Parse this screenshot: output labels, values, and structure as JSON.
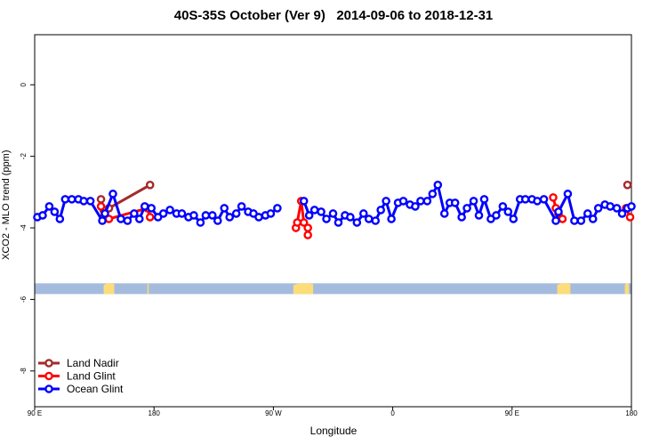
{
  "chart_data": {
    "type": "line",
    "title": "40S-35S October (Ver 9)   2014-09-06 to 2018-12-31",
    "xlabel": "Longitude",
    "ylabel": "XCO2 - MLO trend (ppm)",
    "x_ticks": [
      {
        "lon_shifted": 90,
        "label": "90 E"
      },
      {
        "lon_shifted": 180,
        "label": "180"
      },
      {
        "lon_shifted": 270,
        "label": "90 W"
      },
      {
        "lon_shifted": 360,
        "label": "0"
      },
      {
        "lon_shifted": 450,
        "label": "90 E"
      },
      {
        "lon_shifted": 540,
        "label": "180"
      }
    ],
    "y_ticks": [
      0,
      -2,
      -4,
      -6,
      -8
    ],
    "xlim": [
      90,
      540
    ],
    "ylim": [
      -9,
      1.4
    ],
    "grid": false,
    "legend_position": "bottom-left",
    "land_band": {
      "y_top": -5.55,
      "y_bottom": -5.85,
      "band_color": "#a4bbdd",
      "land_color": "#fddc7a",
      "land_x_ranges": [
        [
          142,
          150
        ],
        [
          175,
          176
        ],
        [
          285,
          300
        ],
        [
          484,
          494
        ],
        [
          535,
          538
        ]
      ]
    },
    "series": [
      {
        "name": "Land Nadir",
        "color": "#a52a2a",
        "segments": [
          [
            [
              140,
              -3.2
            ],
            [
              142,
              -3.5
            ],
            [
              146,
              -3.45
            ],
            [
              177,
              -2.8
            ]
          ],
          [
            [
              537,
              -2.8
            ]
          ]
        ]
      },
      {
        "name": "Land Glint",
        "color": "#ff0000",
        "segments": [
          [
            [
              140,
              -3.4
            ],
            [
              142,
              -3.7
            ],
            [
              146,
              -3.75
            ],
            [
              175,
              -3.45
            ],
            [
              177,
              -3.7
            ]
          ],
          [
            [
              287,
              -4.0
            ],
            [
              288,
              -3.85
            ],
            [
              291,
              -3.25
            ],
            [
              293,
              -3.85
            ],
            [
              296,
              -4.0
            ],
            [
              296,
              -4.2
            ]
          ],
          [
            [
              481,
              -3.15
            ],
            [
              483,
              -3.45
            ],
            [
              485,
              -3.6
            ],
            [
              488,
              -3.75
            ]
          ],
          [
            [
              536,
              -3.45
            ],
            [
              539,
              -3.7
            ]
          ]
        ]
      },
      {
        "name": "Ocean Glint",
        "color": "#0000ff",
        "segments": [
          [
            [
              92,
              -3.7
            ],
            [
              96,
              -3.65
            ],
            [
              101,
              -3.4
            ],
            [
              105,
              -3.55
            ],
            [
              109,
              -3.75
            ],
            [
              113,
              -3.2
            ],
            [
              118,
              -3.2
            ],
            [
              123,
              -3.2
            ],
            [
              127,
              -3.25
            ],
            [
              132,
              -3.25
            ],
            [
              141,
              -3.8
            ],
            [
              143,
              -3.6
            ],
            [
              149,
              -3.05
            ],
            [
              155,
              -3.75
            ],
            [
              160,
              -3.8
            ],
            [
              165,
              -3.6
            ],
            [
              169,
              -3.75
            ],
            [
              173,
              -3.4
            ],
            [
              178,
              -3.45
            ],
            [
              183,
              -3.7
            ],
            [
              187,
              -3.6
            ],
            [
              192,
              -3.5
            ],
            [
              197,
              -3.6
            ],
            [
              201,
              -3.6
            ],
            [
              206,
              -3.7
            ],
            [
              210,
              -3.65
            ],
            [
              215,
              -3.85
            ],
            [
              219,
              -3.65
            ],
            [
              224,
              -3.65
            ],
            [
              228,
              -3.8
            ],
            [
              233,
              -3.45
            ],
            [
              237,
              -3.7
            ],
            [
              242,
              -3.6
            ],
            [
              246,
              -3.4
            ],
            [
              251,
              -3.55
            ],
            [
              255,
              -3.6
            ],
            [
              259,
              -3.7
            ],
            [
              264,
              -3.65
            ],
            [
              268,
              -3.6
            ],
            [
              273,
              -3.45
            ]
          ],
          [
            [
              293,
              -3.25
            ],
            [
              297,
              -3.65
            ],
            [
              301,
              -3.5
            ],
            [
              306,
              -3.55
            ],
            [
              310,
              -3.75
            ],
            [
              315,
              -3.6
            ],
            [
              319,
              -3.85
            ],
            [
              324,
              -3.65
            ],
            [
              328,
              -3.7
            ],
            [
              333,
              -3.85
            ],
            [
              338,
              -3.6
            ],
            [
              342,
              -3.75
            ],
            [
              347,
              -3.8
            ],
            [
              351,
              -3.5
            ],
            [
              355,
              -3.25
            ],
            [
              359,
              -3.75
            ],
            [
              364,
              -3.3
            ],
            [
              368,
              -3.25
            ],
            [
              373,
              -3.35
            ],
            [
              377,
              -3.4
            ],
            [
              381,
              -3.25
            ],
            [
              386,
              -3.25
            ],
            [
              390,
              -3.05
            ],
            [
              394,
              -2.8
            ],
            [
              399,
              -3.6
            ],
            [
              403,
              -3.3
            ],
            [
              407,
              -3.3
            ],
            [
              412,
              -3.7
            ],
            [
              416,
              -3.45
            ],
            [
              421,
              -3.25
            ],
            [
              425,
              -3.65
            ],
            [
              429,
              -3.2
            ],
            [
              434,
              -3.75
            ],
            [
              438,
              -3.65
            ],
            [
              443,
              -3.4
            ],
            [
              447,
              -3.55
            ],
            [
              451,
              -3.75
            ],
            [
              456,
              -3.2
            ],
            [
              460,
              -3.2
            ],
            [
              465,
              -3.2
            ],
            [
              469,
              -3.25
            ],
            [
              474,
              -3.2
            ],
            [
              483,
              -3.8
            ],
            [
              485,
              -3.55
            ],
            [
              492,
              -3.05
            ],
            [
              497,
              -3.8
            ],
            [
              502,
              -3.8
            ],
            [
              507,
              -3.6
            ],
            [
              511,
              -3.75
            ],
            [
              515,
              -3.45
            ],
            [
              520,
              -3.35
            ],
            [
              524,
              -3.4
            ],
            [
              529,
              -3.45
            ],
            [
              533,
              -3.6
            ],
            [
              537,
              -3.45
            ],
            [
              540,
              -3.4
            ]
          ]
        ]
      }
    ]
  }
}
